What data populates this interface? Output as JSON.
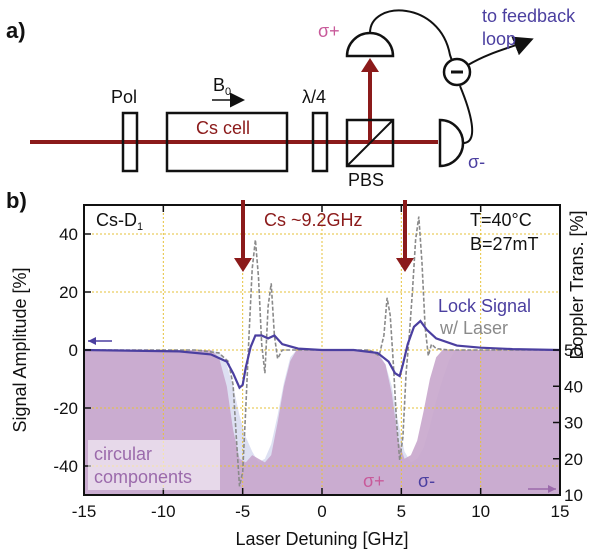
{
  "panel_a": {
    "label": "a)",
    "pol": "Pol",
    "field": "B",
    "field_sub": "0",
    "quarter_wave": "λ/4",
    "cell": "Cs cell",
    "pbs": "PBS",
    "sigma_plus": "σ+",
    "sigma_minus": "σ-",
    "feedback_line1": "to feedback",
    "feedback_line2": "loop",
    "beam_color": "#8b1a1a",
    "feedback_color": "#4b3fa0",
    "sigma_plus_color": "#c85a9a"
  },
  "panel_b": {
    "label": "b)",
    "species": "Cs-D",
    "species_sub": "1",
    "temperature": "T=40°C",
    "field": "B=27mT",
    "splitting": "Cs ~9.2GHz",
    "lock_signal": "Lock Signal",
    "with_laser": "w/ Laser",
    "circular_line1": "circular",
    "circular_line2": "components",
    "sigma_plus": "σ+",
    "sigma_minus": "σ-"
  },
  "chart_data": {
    "type": "line",
    "xlabel": "Laser Detuning [GHz]",
    "ylabel": "Signal Amplitude [%]",
    "y2label": "Doppler Trans. [%]",
    "xlim": [
      -15,
      15
    ],
    "ylim": [
      -50,
      50
    ],
    "y2lim": [
      10,
      90
    ],
    "x_ticks": [
      -15,
      -10,
      -5,
      0,
      5,
      10,
      15
    ],
    "y_ticks": [
      40,
      20,
      0,
      -20,
      -40
    ],
    "y2_ticks": [
      50,
      40,
      30,
      20,
      10
    ],
    "grid": true,
    "colors": {
      "lock": "#4b3fa0",
      "laser": "#8a8a8a",
      "sigma_plus_fill": "#c8a6cc",
      "sigma_minus_fill": "#cfd3ec",
      "arrow": "#8b1a1a",
      "grid": "#e6c23a"
    },
    "series": [
      {
        "name": "Lock Signal",
        "x": [
          -15,
          -9,
          -7,
          -6,
          -5.6,
          -5.2,
          -5.0,
          -4.8,
          -4.5,
          -4.2,
          -3.8,
          -3.4,
          -3.0,
          -2.5,
          -1.5,
          0,
          2,
          3.5,
          4.2,
          4.6,
          4.9,
          5.1,
          5.4,
          5.8,
          6.2,
          6.6,
          7.2,
          8.5,
          10,
          12,
          15
        ],
        "y": [
          0,
          -0.5,
          -1.5,
          -4,
          -8,
          -13,
          -12,
          -6,
          1,
          5,
          5,
          4,
          5,
          2,
          0.5,
          0,
          0,
          -1,
          -4,
          -8,
          -9,
          -5,
          2,
          8,
          10,
          7,
          4,
          1.5,
          0.8,
          0.3,
          0
        ]
      },
      {
        "name": "w/ Laser",
        "x": [
          -15,
          -8,
          -6.5,
          -5.9,
          -5.6,
          -5.4,
          -5.2,
          -5.0,
          -4.8,
          -4.6,
          -4.4,
          -4.2,
          -4.0,
          -3.8,
          -3.6,
          -3.4,
          -3.2,
          -3.0,
          -2.8,
          -2.5,
          -2,
          -1,
          0,
          2,
          3,
          3.6,
          3.9,
          4.1,
          4.3,
          4.5,
          4.7,
          4.9,
          5.1,
          5.3,
          5.5,
          5.7,
          5.9,
          6.1,
          6.3,
          6.5,
          6.7,
          6.9,
          7.2,
          8,
          10,
          15
        ],
        "y": [
          0,
          0,
          -1,
          -4,
          -12,
          -30,
          -47,
          -42,
          -20,
          5,
          28,
          38,
          25,
          2,
          -8,
          15,
          23,
          5,
          -3,
          0,
          0,
          0,
          0,
          0,
          0,
          -2,
          5,
          18,
          12,
          -5,
          -25,
          -38,
          -30,
          -8,
          5,
          20,
          38,
          46,
          30,
          8,
          -2,
          2,
          0.5,
          0,
          0,
          0
        ]
      },
      {
        "name": "σ+",
        "x": [
          -15,
          -8,
          -7,
          -6.5,
          -6,
          -5.6,
          -5.2,
          -4.8,
          -4.4,
          -4,
          -3.6,
          -3.2,
          -2.8,
          -2.4,
          -2,
          -1.6,
          -1.2,
          0,
          2,
          3,
          3.5,
          4,
          4.4,
          4.8,
          5.2,
          5.6,
          6,
          6.4,
          6.8,
          7.2,
          7.6,
          8,
          8.6,
          10,
          15
        ],
        "y": [
          50,
          50,
          50,
          48,
          40,
          28,
          20,
          19,
          21,
          20,
          19,
          21,
          30,
          40,
          47,
          50,
          50,
          50,
          50,
          50,
          49,
          46,
          38,
          25,
          20,
          21,
          25,
          33,
          42,
          48,
          50,
          50,
          50,
          50,
          50
        ]
      },
      {
        "name": "σ-",
        "x": [
          -15,
          -8,
          -7,
          -6.4,
          -6,
          -5.6,
          -5.2,
          -4.8,
          -4.4,
          -4,
          -3.6,
          -3.2,
          -2.8,
          -2.4,
          -2,
          -1.6,
          0,
          2,
          3,
          3.6,
          4,
          4.4,
          4.8,
          5.2,
          5.6,
          6,
          6.4,
          6.8,
          7.2,
          7.6,
          8,
          8.4,
          9,
          10,
          15
        ],
        "y": [
          50,
          50,
          50,
          49,
          46,
          40,
          32,
          26,
          22,
          19,
          20,
          24,
          32,
          41,
          48,
          50,
          50,
          50,
          50,
          49,
          46,
          40,
          30,
          22,
          19,
          20,
          23,
          29,
          36,
          42,
          47,
          50,
          50,
          50,
          50
        ]
      }
    ]
  }
}
